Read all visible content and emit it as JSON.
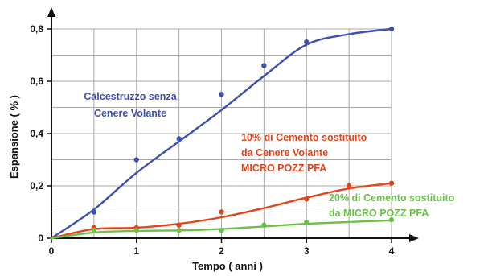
{
  "chart_data": {
    "type": "line",
    "xlabel": "Tempo ( anni )",
    "ylabel": "Espansione ( % )",
    "xlim": [
      0,
      4
    ],
    "ylim": [
      0,
      0.8
    ],
    "x_ticks": [
      "0",
      "1",
      "2",
      "3",
      "4"
    ],
    "y_ticks": [
      "0",
      "0,2",
      "0,4",
      "0,6",
      "0,8"
    ],
    "grid": true,
    "colors": {
      "grid": "#a9a9a9",
      "axis": "#111111"
    },
    "series": [
      {
        "name": "Calcestruzzo senza Cenere Volante",
        "color": "#3f4fae",
        "points": [
          [
            0.5,
            0.1
          ],
          [
            1,
            0.3
          ],
          [
            1.5,
            0.38
          ],
          [
            2,
            0.55
          ],
          [
            2.5,
            0.66
          ],
          [
            3,
            0.75
          ],
          [
            4,
            0.8
          ]
        ],
        "curve": [
          [
            0,
            0
          ],
          [
            0.5,
            0.11
          ],
          [
            1,
            0.25
          ],
          [
            1.5,
            0.37
          ],
          [
            2,
            0.49
          ],
          [
            2.5,
            0.62
          ],
          [
            3,
            0.74
          ],
          [
            3.5,
            0.78
          ],
          [
            4,
            0.8
          ]
        ]
      },
      {
        "name": "10% di Cemento sostituito da Cenere Volante MICRO POZZ PFA",
        "color": "#e2451c",
        "points": [
          [
            0.5,
            0.04
          ],
          [
            1,
            0.04
          ],
          [
            1.5,
            0.05
          ],
          [
            2,
            0.1
          ],
          [
            3,
            0.15
          ],
          [
            3.5,
            0.2
          ],
          [
            4,
            0.21
          ]
        ],
        "curve": [
          [
            0,
            0
          ],
          [
            0.5,
            0.035
          ],
          [
            1,
            0.04
          ],
          [
            1.5,
            0.055
          ],
          [
            2,
            0.08
          ],
          [
            2.5,
            0.115
          ],
          [
            3,
            0.155
          ],
          [
            3.5,
            0.19
          ],
          [
            4,
            0.21
          ]
        ]
      },
      {
        "name": "20% di Cemento sostituito da MICRO POZZ PFA",
        "color": "#6cc04a",
        "points": [
          [
            0.5,
            0.03
          ],
          [
            1,
            0.03
          ],
          [
            1.5,
            0.03
          ],
          [
            2,
            0.03
          ],
          [
            2.5,
            0.05
          ],
          [
            3,
            0.06
          ],
          [
            4,
            0.07
          ]
        ],
        "curve": [
          [
            0,
            0
          ],
          [
            0.5,
            0.022
          ],
          [
            1,
            0.028
          ],
          [
            1.5,
            0.03
          ],
          [
            2,
            0.035
          ],
          [
            2.5,
            0.045
          ],
          [
            3,
            0.055
          ],
          [
            3.5,
            0.062
          ],
          [
            4,
            0.068
          ]
        ]
      }
    ],
    "annotations": [
      {
        "lines": [
          "Calcestruzzo senza",
          "Cenere Volante"
        ],
        "color": "#3f4fae"
      },
      {
        "lines": [
          "10% di Cemento sostituito",
          "da Cenere Volante",
          "MICRO POZZ PFA"
        ],
        "color": "#e2451c"
      },
      {
        "lines": [
          "20% di Cemento sostituito",
          "da MICRO POZZ PFA"
        ],
        "color": "#6cc04a"
      }
    ]
  }
}
